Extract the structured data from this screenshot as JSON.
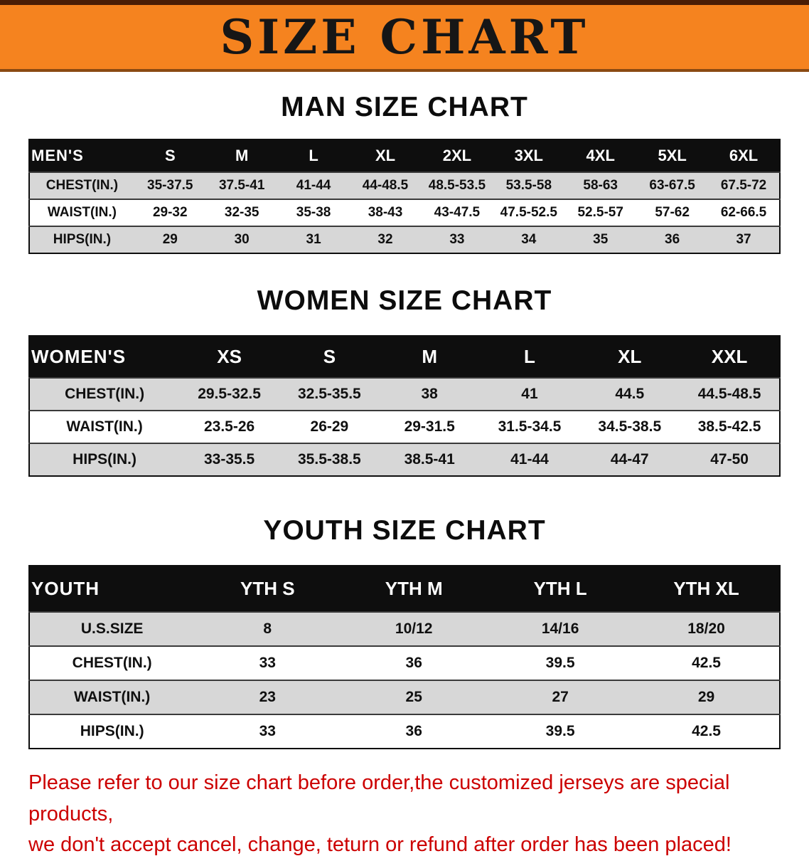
{
  "banner": {
    "title": "SIZE CHART",
    "bg_color": "#f5831f",
    "text_color": "#161616"
  },
  "colors": {
    "table_header_bg": "#0e0e0e",
    "row_stripe": "#d7d7d7",
    "note_text": "#cc0000"
  },
  "sections": [
    {
      "heading": "MAN SIZE CHART",
      "table": {
        "header_label": "MEN'S",
        "columns": [
          "S",
          "M",
          "L",
          "XL",
          "2XL",
          "3XL",
          "4XL",
          "5XL",
          "6XL"
        ],
        "rows": [
          {
            "label": "CHEST(IN.)",
            "values": [
              "35-37.5",
              "37.5-41",
              "41-44",
              "44-48.5",
              "48.5-53.5",
              "53.5-58",
              "58-63",
              "63-67.5",
              "67.5-72"
            ]
          },
          {
            "label": "WAIST(IN.)",
            "values": [
              "29-32",
              "32-35",
              "35-38",
              "38-43",
              "43-47.5",
              "47.5-52.5",
              "52.5-57",
              "57-62",
              "62-66.5"
            ]
          },
          {
            "label": "HIPS(IN.)",
            "values": [
              "29",
              "30",
              "31",
              "32",
              "33",
              "34",
              "35",
              "36",
              "37"
            ]
          }
        ]
      }
    },
    {
      "heading": "WOMEN SIZE CHART",
      "table": {
        "header_label": "WOMEN'S",
        "columns": [
          "XS",
          "S",
          "M",
          "L",
          "XL",
          "XXL"
        ],
        "rows": [
          {
            "label": "CHEST(IN.)",
            "values": [
              "29.5-32.5",
              "32.5-35.5",
              "38",
              "41",
              "44.5",
              "44.5-48.5"
            ]
          },
          {
            "label": "WAIST(IN.)",
            "values": [
              "23.5-26",
              "26-29",
              "29-31.5",
              "31.5-34.5",
              "34.5-38.5",
              "38.5-42.5"
            ]
          },
          {
            "label": "HIPS(IN.)",
            "values": [
              "33-35.5",
              "35.5-38.5",
              "38.5-41",
              "41-44",
              "44-47",
              "47-50"
            ]
          }
        ]
      }
    },
    {
      "heading": "YOUTH SIZE CHART",
      "table": {
        "header_label": "YOUTH",
        "columns": [
          "YTH S",
          "YTH M",
          "YTH L",
          "YTH XL"
        ],
        "rows": [
          {
            "label": "U.S.SIZE",
            "values": [
              "8",
              "10/12",
              "14/16",
              "18/20"
            ]
          },
          {
            "label": "CHEST(IN.)",
            "values": [
              "33",
              "36",
              "39.5",
              "42.5"
            ]
          },
          {
            "label": "WAIST(IN.)",
            "values": [
              "23",
              "25",
              "27",
              "29"
            ]
          },
          {
            "label": "HIPS(IN.)",
            "values": [
              "33",
              "36",
              "39.5",
              "42.5"
            ]
          }
        ]
      }
    }
  ],
  "footer_note": {
    "line1": "Please refer to our size chart before order,the customized jerseys are special products,",
    "line2": "we don't accept cancel, change, teturn or refund after order has been placed!"
  }
}
